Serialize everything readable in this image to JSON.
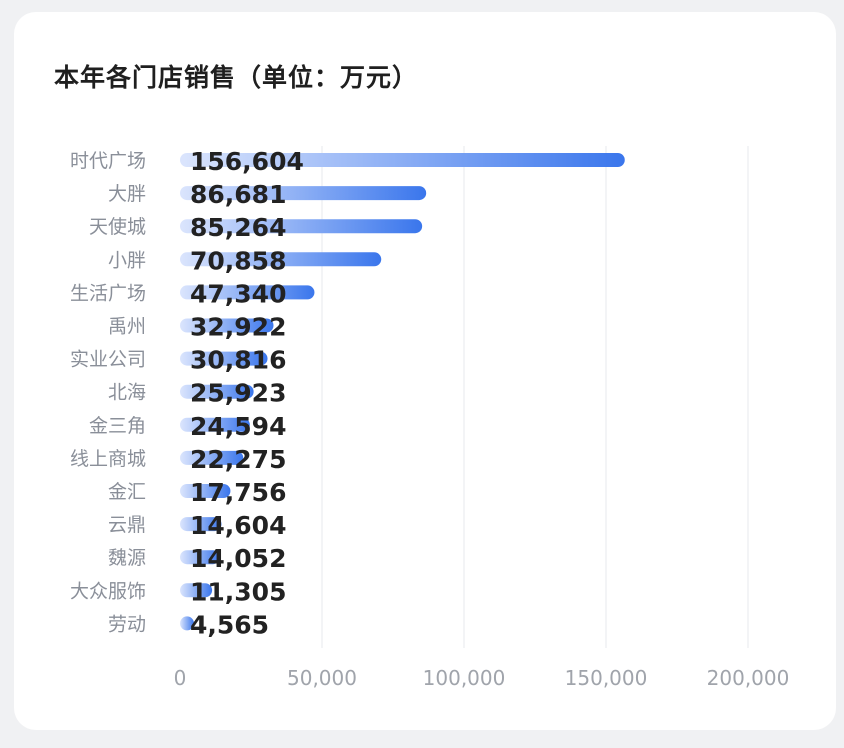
{
  "card": {
    "title": "本年各门店销售（单位：万元）"
  },
  "chart_data": {
    "type": "bar",
    "orientation": "horizontal",
    "title": "本年各门店销售（单位：万元）",
    "categories": [
      "时代广场",
      "大胖",
      "天使城",
      "小胖",
      "生活广场",
      "禹州",
      "实业公司",
      "北海",
      "金三角",
      "线上商城",
      "金汇",
      "云鼎",
      "魏源",
      "大众服饰",
      "劳动"
    ],
    "values": [
      156604,
      86681,
      85264,
      70858,
      47340,
      32922,
      30816,
      25923,
      24594,
      22275,
      17756,
      14604,
      14052,
      11305,
      4565
    ],
    "value_labels": [
      "156,604",
      "86,681",
      "85,264",
      "70,858",
      "47,340",
      "32,922",
      "30,816",
      "25,923",
      "24,594",
      "22,275",
      "17,756",
      "14,604",
      "14,052",
      "11,305",
      "4,565"
    ],
    "xlim": [
      0,
      200000
    ],
    "xticks": [
      0,
      50000,
      100000,
      150000,
      200000
    ],
    "xtick_labels": [
      "0",
      "50,000",
      "100,000",
      "150,000",
      "200,000"
    ],
    "grid": "vertical",
    "bar_color_start": "#dbe5fd",
    "bar_color_end": "#3a76ec"
  }
}
